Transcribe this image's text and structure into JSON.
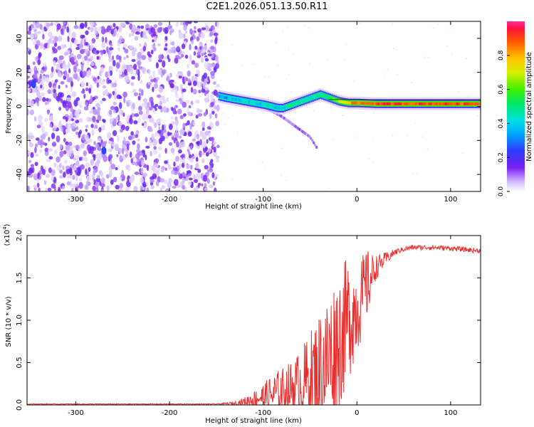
{
  "title": "C2E1.2026.051.13.50.R11",
  "colors": {
    "background": "#ffffff",
    "axis": "#000000",
    "snr_line": "#e8302e",
    "scatter_dots": "#6a18e8",
    "track_core": "#e81818"
  },
  "colorbar": {
    "label": "Normalized spectral amplitude",
    "ticks": [
      "0.0",
      "0.2",
      "0.4",
      "0.6",
      "0.8"
    ],
    "tick_values": [
      0.0,
      0.2,
      0.4,
      0.6,
      0.8
    ],
    "range": [
      0,
      1
    ]
  },
  "chart_data": [
    {
      "type": "heatmap",
      "name": "spectrogram",
      "xlabel": "Height of straight line (km)",
      "ylabel": "Frequency (Hz)",
      "xlim": [
        -352,
        132
      ],
      "ylim": [
        -50,
        50
      ],
      "xticks": [
        -300,
        -200,
        -100,
        0,
        100
      ],
      "xtick_labels": [
        "-300",
        "-200",
        "-100",
        "0",
        "100"
      ],
      "yticks": [
        -40,
        -20,
        0,
        20,
        40
      ],
      "ytick_labels": [
        "-40",
        "-20",
        "0",
        "20",
        "40"
      ],
      "noise_region_x": [
        -352,
        -148
      ],
      "track": {
        "x": [
          -148,
          -140,
          -130,
          -120,
          -110,
          -100,
          -92,
          -85,
          -80,
          -75,
          -70,
          -65,
          -60,
          -55,
          -50,
          -45,
          -40,
          -35,
          -30,
          -25,
          -20,
          -10,
          0,
          20,
          40,
          60,
          80,
          100,
          120,
          132
        ],
        "freq": [
          6,
          5,
          4,
          3,
          2,
          1,
          0,
          -1,
          -1,
          0,
          1,
          2,
          3,
          4,
          5,
          6,
          7,
          6,
          5,
          4,
          3,
          2,
          2,
          1.5,
          1.5,
          1.5,
          1.5,
          1.5,
          1.5,
          1.5
        ],
        "amplitude": [
          0.3,
          0.35,
          0.35,
          0.4,
          0.4,
          0.4,
          0.4,
          0.4,
          0.4,
          0.45,
          0.45,
          0.45,
          0.45,
          0.45,
          0.45,
          0.45,
          0.45,
          0.5,
          0.55,
          0.6,
          0.7,
          0.8,
          0.85,
          0.9,
          0.9,
          0.9,
          0.9,
          0.9,
          0.9,
          0.9
        ]
      },
      "secondary_branch": {
        "x": [
          -100,
          -90,
          -80,
          -70,
          -60,
          -50,
          -43
        ],
        "freq": [
          0,
          -3,
          -6,
          -10,
          -14,
          -18,
          -24
        ]
      },
      "bright_spots": [
        {
          "x": -345,
          "freq": 13,
          "amplitude": 0.25
        },
        {
          "x": -270,
          "freq": -26,
          "amplitude": 0.25
        }
      ]
    },
    {
      "type": "line",
      "name": "snr",
      "xlabel": "Height of straight line (km)",
      "ylabel": "SNR (10 * v/v)",
      "y_scale_label": "(x10",
      "y_scale_exponent": "4",
      "xlim": [
        -352,
        132
      ],
      "ylim": [
        0,
        2.0
      ],
      "xticks": [
        -300,
        -200,
        -100,
        0,
        100
      ],
      "xtick_labels": [
        "-300",
        "-200",
        "-100",
        "0",
        "100"
      ],
      "yticks": [
        0.0,
        0.5,
        1.0,
        1.5,
        2.0
      ],
      "ytick_labels": [
        "0.0",
        "0.5",
        "1.0",
        "1.5",
        "2.0"
      ],
      "series": [
        {
          "name": "SNR",
          "x": [
            -352,
            -300,
            -250,
            -200,
            -150,
            -130,
            -120,
            -110,
            -100,
            -90,
            -80,
            -70,
            -60,
            -50,
            -40,
            -30,
            -20,
            -10,
            0,
            5,
            10,
            15,
            20,
            30,
            40,
            50,
            60,
            80,
            100,
            110,
            120,
            132
          ],
          "baseline": [
            0.01,
            0.01,
            0.01,
            0.01,
            0.01,
            0.02,
            0.04,
            0.07,
            0.1,
            0.12,
            0.16,
            0.2,
            0.26,
            0.32,
            0.42,
            0.55,
            0.75,
            1.0,
            1.15,
            1.25,
            1.4,
            1.5,
            1.62,
            1.72,
            1.8,
            1.84,
            1.86,
            1.86,
            1.85,
            1.84,
            1.83,
            1.82
          ],
          "spread": [
            0.005,
            0.005,
            0.005,
            0.005,
            0.005,
            0.02,
            0.05,
            0.1,
            0.15,
            0.25,
            0.28,
            0.32,
            0.4,
            0.55,
            0.7,
            0.8,
            0.85,
            0.75,
            0.55,
            0.5,
            0.45,
            0.3,
            0.15,
            0.08,
            0.04,
            0.03,
            0.03,
            0.03,
            0.03,
            0.03,
            0.03,
            0.03
          ]
        }
      ]
    }
  ]
}
